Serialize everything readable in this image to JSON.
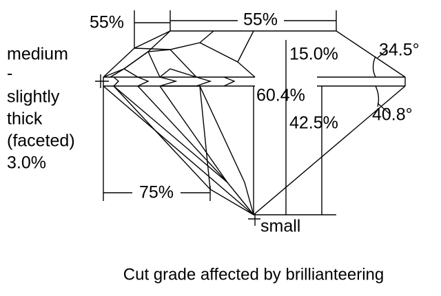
{
  "labels": {
    "crown_star": "55%",
    "table": "55%",
    "girdle": [
      "medium",
      "-",
      "slightly",
      "thick",
      "(faceted)",
      "3.0%"
    ],
    "crown_height": "15.0%",
    "crown_angle": "34.5°",
    "total_depth": "60.4%",
    "pavilion_depth": "42.5%",
    "pavilion_angle": "40.8°",
    "lower_half": "75%",
    "culet": "small"
  },
  "caption": "Cut grade affected by brillianteering"
}
